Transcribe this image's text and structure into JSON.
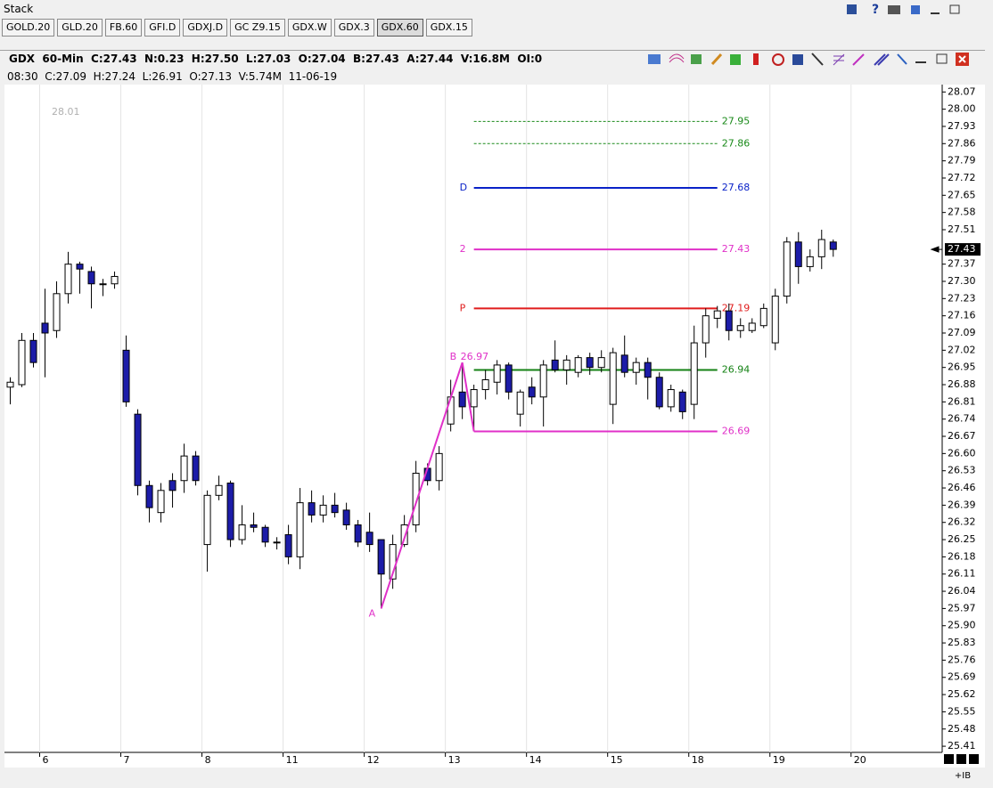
{
  "window": {
    "title": "Stack"
  },
  "tabs": [
    "GOLD.20",
    "GLD.20",
    "FB.60",
    "GFI.D",
    "GDXJ.D",
    "GC Z9.15",
    "GDX.W",
    "GDX.3",
    "GDX.60",
    "GDX.15"
  ],
  "selected_tab": 8,
  "header": {
    "line1": "GDX  60-Min  C:27.43  N:0.23  H:27.50  L:27.03  O:27.04  B:27.43  A:27.44  V:16.8M  OI:0",
    "line2": "08:30  C:27.09  H:27.24  L:26.91  O:27.13  V:5.74M  11-06-19"
  },
  "footer": "+IB",
  "chart_data": {
    "type": "candlestick",
    "x": [
      0,
      1,
      2,
      3,
      4,
      5,
      6,
      7,
      8,
      9,
      10,
      11,
      12,
      13,
      14,
      15,
      16,
      17,
      18,
      19,
      20,
      21,
      22,
      23,
      24,
      25,
      26,
      27,
      28,
      29,
      30,
      31,
      32,
      33,
      34,
      35,
      36,
      37,
      38,
      39,
      40,
      41,
      42,
      43,
      44,
      45,
      46,
      47,
      48,
      49,
      50,
      51,
      52,
      53,
      54,
      55,
      56,
      57,
      58,
      59,
      60,
      61,
      62,
      63,
      64,
      65,
      66,
      67,
      68,
      69,
      70,
      71
    ],
    "open": [
      26.87,
      26.88,
      27.06,
      27.13,
      27.1,
      27.25,
      27.37,
      27.34,
      27.29,
      27.29,
      27.02,
      26.76,
      26.47,
      26.36,
      26.49,
      26.49,
      26.59,
      26.23,
      26.43,
      26.48,
      26.25,
      26.31,
      26.3,
      26.24,
      26.27,
      26.18,
      26.4,
      26.35,
      26.39,
      26.37,
      26.31,
      26.28,
      26.25,
      26.09,
      26.23,
      26.31,
      26.54,
      26.49,
      26.72,
      26.85,
      26.79,
      26.86,
      26.89,
      26.96,
      26.76,
      26.87,
      26.83,
      26.98,
      26.94,
      26.93,
      26.99,
      26.95,
      26.8,
      27.0,
      26.93,
      26.97,
      26.91,
      26.79,
      26.85,
      26.8,
      27.05,
      27.15,
      27.18,
      27.1,
      27.1,
      27.12,
      27.05,
      27.24,
      27.46,
      27.36,
      27.4,
      27.46
    ],
    "high": [
      26.91,
      27.09,
      27.09,
      27.27,
      27.3,
      27.42,
      27.38,
      27.36,
      27.31,
      27.34,
      27.08,
      26.78,
      26.49,
      26.48,
      26.52,
      26.64,
      26.61,
      26.45,
      26.51,
      26.49,
      26.39,
      26.36,
      26.31,
      26.26,
      26.31,
      26.46,
      26.45,
      26.43,
      26.44,
      26.4,
      26.33,
      26.36,
      26.25,
      26.27,
      26.35,
      26.57,
      26.56,
      26.63,
      26.9,
      26.97,
      26.88,
      26.94,
      26.98,
      26.97,
      26.86,
      26.91,
      26.98,
      27.06,
      27.0,
      27.0,
      27.01,
      27.02,
      27.03,
      27.08,
      26.99,
      26.99,
      26.93,
      26.88,
      26.86,
      27.12,
      27.19,
      27.2,
      27.21,
      27.15,
      27.15,
      27.21,
      27.27,
      27.48,
      27.5,
      27.43,
      27.51,
      27.47
    ],
    "low": [
      26.8,
      26.87,
      26.95,
      26.91,
      27.07,
      27.21,
      27.25,
      27.19,
      27.24,
      27.27,
      26.79,
      26.43,
      26.32,
      26.32,
      26.38,
      26.44,
      26.47,
      26.12,
      26.41,
      26.22,
      26.23,
      26.28,
      26.22,
      26.21,
      26.15,
      26.13,
      26.32,
      26.32,
      26.34,
      26.29,
      26.22,
      26.2,
      25.97,
      26.05,
      26.22,
      26.28,
      26.47,
      26.45,
      26.69,
      26.74,
      26.69,
      26.82,
      26.84,
      26.82,
      26.71,
      26.8,
      26.71,
      26.93,
      26.88,
      26.91,
      26.92,
      26.93,
      26.72,
      26.91,
      26.88,
      26.82,
      26.78,
      26.77,
      26.74,
      26.74,
      26.99,
      27.11,
      27.06,
      27.07,
      27.09,
      27.11,
      27.02,
      27.21,
      27.29,
      27.34,
      27.35,
      27.4
    ],
    "close": [
      26.89,
      27.06,
      26.97,
      27.09,
      27.25,
      27.37,
      27.35,
      27.29,
      27.29,
      27.32,
      26.81,
      26.47,
      26.38,
      26.45,
      26.45,
      26.59,
      26.49,
      26.43,
      26.47,
      26.25,
      26.31,
      26.3,
      26.24,
      26.24,
      26.18,
      26.4,
      26.35,
      26.39,
      26.36,
      26.31,
      26.24,
      26.23,
      26.11,
      26.23,
      26.31,
      26.52,
      26.49,
      26.6,
      26.83,
      26.79,
      26.86,
      26.9,
      26.96,
      26.85,
      26.85,
      26.83,
      26.96,
      26.94,
      26.98,
      26.99,
      26.95,
      26.99,
      27.01,
      26.93,
      26.97,
      26.91,
      26.79,
      26.86,
      26.77,
      27.05,
      27.16,
      27.18,
      27.1,
      27.12,
      27.13,
      27.19,
      27.24,
      27.46,
      27.36,
      27.4,
      27.47,
      27.43
    ],
    "up_color": "#ffffff",
    "down_color": "#1c1ca8",
    "xlim": [
      -0.5,
      80.4
    ],
    "xticks": [
      {
        "value": 3,
        "label": "6"
      },
      {
        "value": 10,
        "label": "7"
      },
      {
        "value": 17,
        "label": "8"
      },
      {
        "value": 24,
        "label": "11"
      },
      {
        "value": 31,
        "label": "12"
      },
      {
        "value": 38,
        "label": "13"
      },
      {
        "value": 45,
        "label": "14"
      },
      {
        "value": 52,
        "label": "15"
      },
      {
        "value": 59,
        "label": "18"
      },
      {
        "value": 66,
        "label": "19"
      },
      {
        "value": 73,
        "label": "20"
      }
    ],
    "ylim": [
      25.385,
      28.1
    ],
    "yticks": [
      28.07,
      {
        "value": 28,
        "label": "28.00"
      },
      27.93,
      27.86,
      27.79,
      27.72,
      27.65,
      27.58,
      27.51,
      27.37,
      {
        "value": 27.3,
        "label": "27.30"
      },
      27.23,
      27.16,
      27.09,
      27.02,
      26.95,
      26.88,
      26.81,
      26.74,
      26.67,
      {
        "value": 26.6,
        "label": "26.60"
      },
      26.53,
      26.46,
      26.39,
      26.32,
      26.25,
      26.18,
      26.11,
      26.04,
      25.97,
      {
        "value": 25.9,
        "label": "25.90"
      },
      25.83,
      25.76,
      25.69,
      25.62,
      25.55,
      25.48,
      25.41
    ],
    "grid": true,
    "last": 27.43,
    "levels": [
      {
        "value": 27.95,
        "color": "#1a8a1a",
        "style": "dashed"
      },
      {
        "value": 27.86,
        "color": "#1a8a1a",
        "style": "dashed"
      },
      {
        "label": "D",
        "value": 27.68,
        "color": "#0a22c8",
        "style": "solid"
      },
      {
        "label": "2",
        "value": 27.43,
        "color": "#e030c8",
        "style": "solid"
      },
      {
        "label": "P",
        "value": 27.19,
        "color": "#e01c1c",
        "style": "solid"
      },
      {
        "value": 26.94,
        "color": "#148214",
        "style": "solid"
      },
      {
        "value": 26.69,
        "color": "#e030c8",
        "style": "solid"
      }
    ],
    "level_span": [
      40,
      61
    ],
    "pattern": {
      "color": "#e030c8",
      "points": [
        {
          "label": "A",
          "x": 32,
          "y": 25.97
        },
        {
          "label": "B",
          "x": 39,
          "y": 26.97
        },
        {
          "x": 40,
          "y": 26.69
        }
      ]
    },
    "annotation": "28.01"
  }
}
